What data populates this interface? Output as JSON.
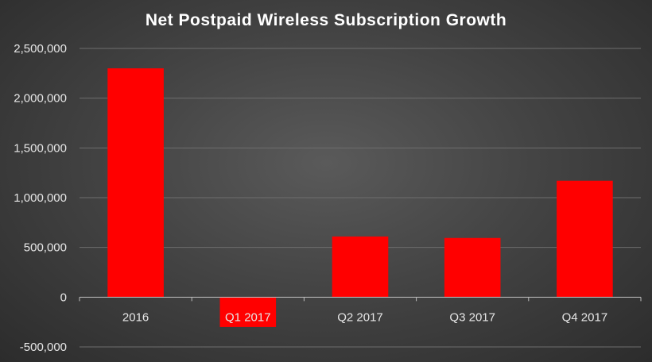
{
  "chart_data": {
    "type": "bar",
    "title": "Net Postpaid Wireless Subscription Growth",
    "xlabel": "",
    "ylabel": "",
    "categories": [
      "2016",
      "Q1 2017",
      "Q2 2017",
      "Q3 2017",
      "Q4 2017"
    ],
    "values": [
      2300000,
      -300000,
      610000,
      595000,
      1170000
    ],
    "ylim": [
      -500000,
      2500000
    ],
    "yticks": [
      -500000,
      0,
      500000,
      1000000,
      1500000,
      2000000,
      2500000
    ],
    "ytick_labels": [
      "-500,000",
      "0",
      "500,000",
      "1,000,000",
      "1,500,000",
      "2,000,000",
      "2,500,000"
    ],
    "grid": true,
    "legend": "none",
    "colors": {
      "bar": "#ff0000",
      "background": "#4a4a4a",
      "text": "#e6e6e6",
      "grid": "#6e6e6e"
    }
  }
}
